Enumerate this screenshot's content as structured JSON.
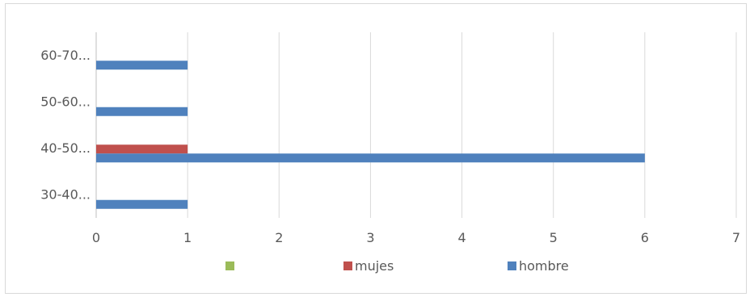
{
  "chart_data": {
    "type": "bar",
    "orientation": "horizontal",
    "categories": [
      "30-40...",
      "40-50...",
      "50-60...",
      "60-70..."
    ],
    "series": [
      {
        "name": "",
        "color": "#9bbb59",
        "values": [
          0,
          0,
          0,
          0
        ]
      },
      {
        "name": "mujes",
        "color": "#c0504d",
        "values": [
          0,
          1,
          0,
          0
        ]
      },
      {
        "name": "hombre",
        "color": "#4f81bd",
        "values": [
          1,
          6,
          1,
          1
        ]
      }
    ],
    "xlim": [
      0,
      7
    ],
    "x_ticks": [
      "0",
      "1",
      "2",
      "3",
      "4",
      "5",
      "6",
      "7"
    ],
    "grid": true,
    "legend_position": "bottom"
  }
}
